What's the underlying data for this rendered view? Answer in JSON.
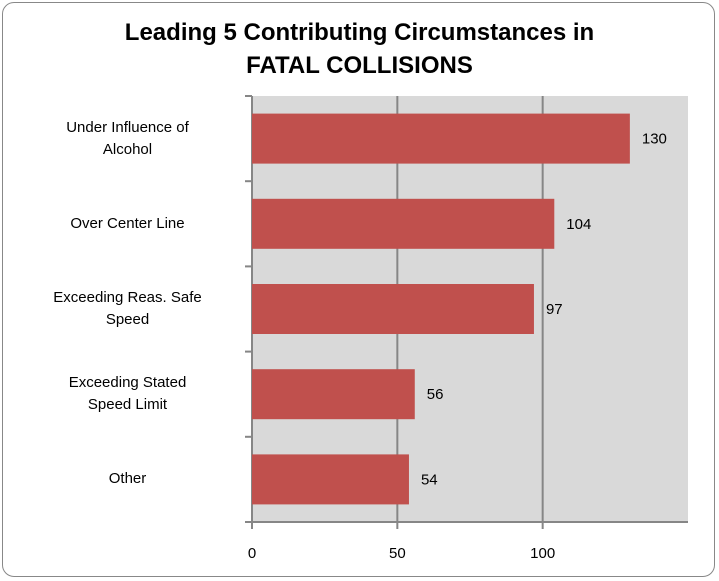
{
  "chart_data": {
    "type": "bar",
    "orientation": "horizontal",
    "title": "Leading 5 Contributing Circumstances in\nFATAL COLLISIONS",
    "categories": [
      "Under Influence of\nAlcohol",
      "Over Center Line",
      "Exceeding Reas. Safe\nSpeed",
      "Exceeding Stated\nSpeed Limit",
      "Other"
    ],
    "values": [
      130,
      104,
      97,
      56,
      54
    ],
    "color": "#c0504d",
    "xlim": [
      0,
      150
    ],
    "xticks": [
      0,
      50,
      100
    ],
    "grid": true
  }
}
